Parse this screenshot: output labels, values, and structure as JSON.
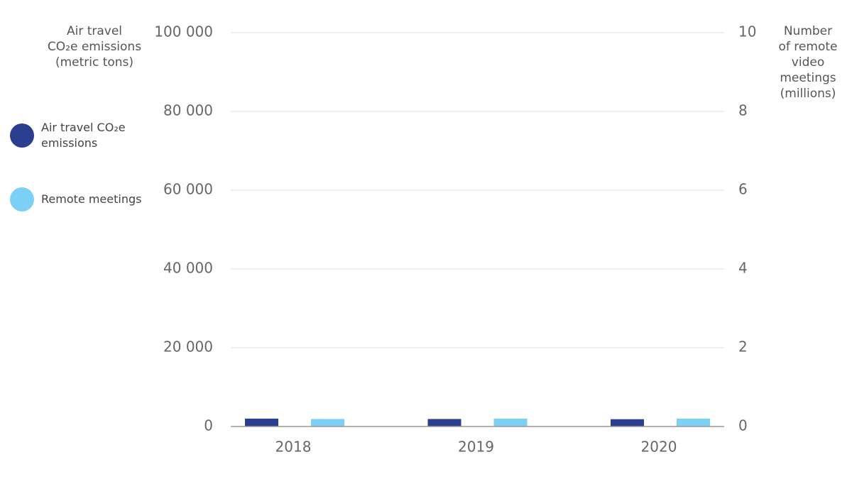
{
  "chart_data": {
    "type": "bar",
    "ylabel": [
      "Air travel",
      "CO₂e emissions",
      "(metric tons)"
    ],
    "y2label": [
      "Number",
      "of remote",
      "video",
      "meetings",
      "(millions)"
    ],
    "categories": [
      "2018",
      "2019",
      "2020"
    ],
    "series": [
      {
        "name": "Air travel CO₂e emissions",
        "color": "#2a3f8f",
        "values": [
          2000,
          1900,
          1850
        ],
        "axis": "y"
      },
      {
        "name": "Remote meetings",
        "color": "#7ccff5",
        "values": [
          0.19,
          0.2,
          0.2
        ],
        "axis": "y2"
      }
    ],
    "ylim": [
      0,
      100000
    ],
    "yticks": [
      0,
      {
        "value": 20000,
        "label": "20 000"
      },
      {
        "value": 40000,
        "label": "40 000"
      },
      {
        "value": 60000,
        "label": "60 000"
      },
      {
        "value": 80000,
        "label": "80 000"
      },
      {
        "value": 100000,
        "label": "100 000"
      }
    ],
    "y2lim": [
      0,
      10
    ],
    "y2ticks": [
      0,
      2,
      4,
      6,
      8,
      10
    ],
    "grid": true
  }
}
